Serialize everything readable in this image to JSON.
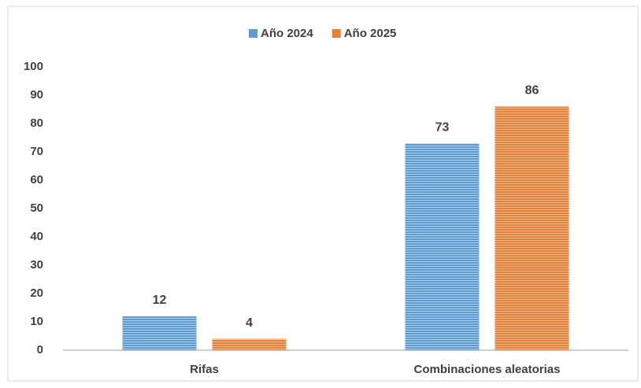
{
  "chart_data": {
    "type": "bar",
    "categories": [
      "Rifas",
      "Combinaciones aleatorias"
    ],
    "series": [
      {
        "name": "Año 2024",
        "color": "#5b9bd5",
        "values": [
          12,
          73
        ]
      },
      {
        "name": "Año 2025",
        "color": "#ed7d31",
        "values": [
          4,
          86
        ]
      }
    ],
    "ylim": [
      0,
      100
    ],
    "yticks": [
      0,
      10,
      20,
      30,
      40,
      50,
      60,
      70,
      80,
      90,
      100
    ],
    "grid": false,
    "legend": "top"
  }
}
